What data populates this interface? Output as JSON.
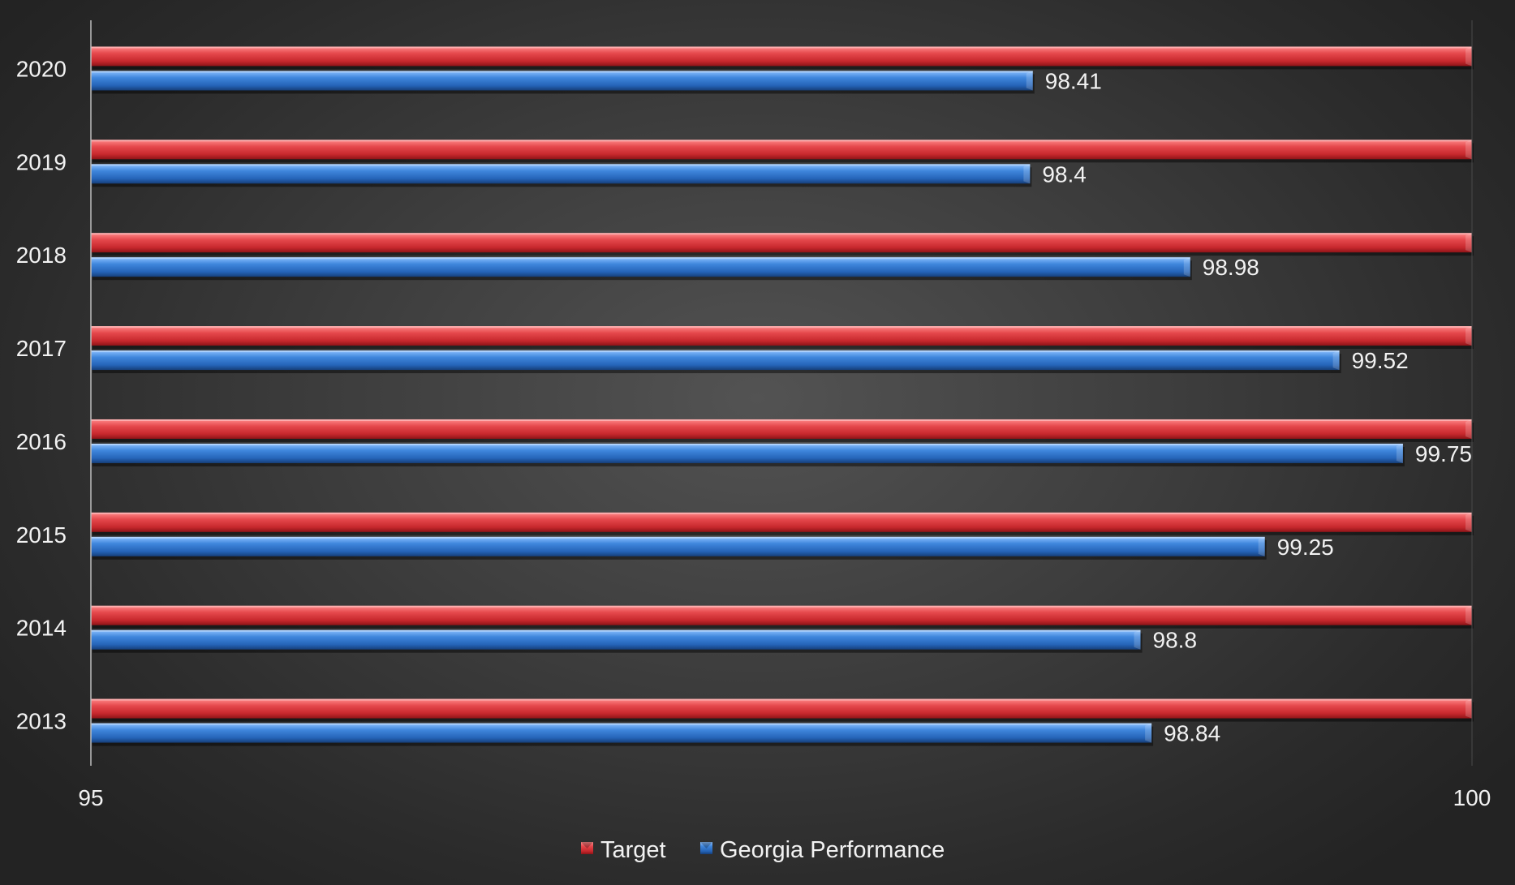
{
  "chart_data": {
    "type": "bar",
    "orientation": "horizontal",
    "categories": [
      "2013",
      "2014",
      "2015",
      "2016",
      "2017",
      "2018",
      "2019",
      "2020"
    ],
    "series": [
      {
        "name": "Target",
        "color": "#e8454a",
        "values": [
          100,
          100,
          100,
          100,
          100,
          100,
          100,
          100
        ],
        "show_labels": false
      },
      {
        "name": "Georgia Performance",
        "color": "#3f86dc",
        "values": [
          98.84,
          98.8,
          99.25,
          99.75,
          99.52,
          98.98,
          98.4,
          98.41
        ],
        "show_labels": true
      }
    ],
    "xlim": [
      95,
      100
    ],
    "x_ticks": [
      "95",
      "100"
    ],
    "title": "",
    "xlabel": "",
    "ylabel": "",
    "legend_position": "bottom",
    "grid": false
  }
}
